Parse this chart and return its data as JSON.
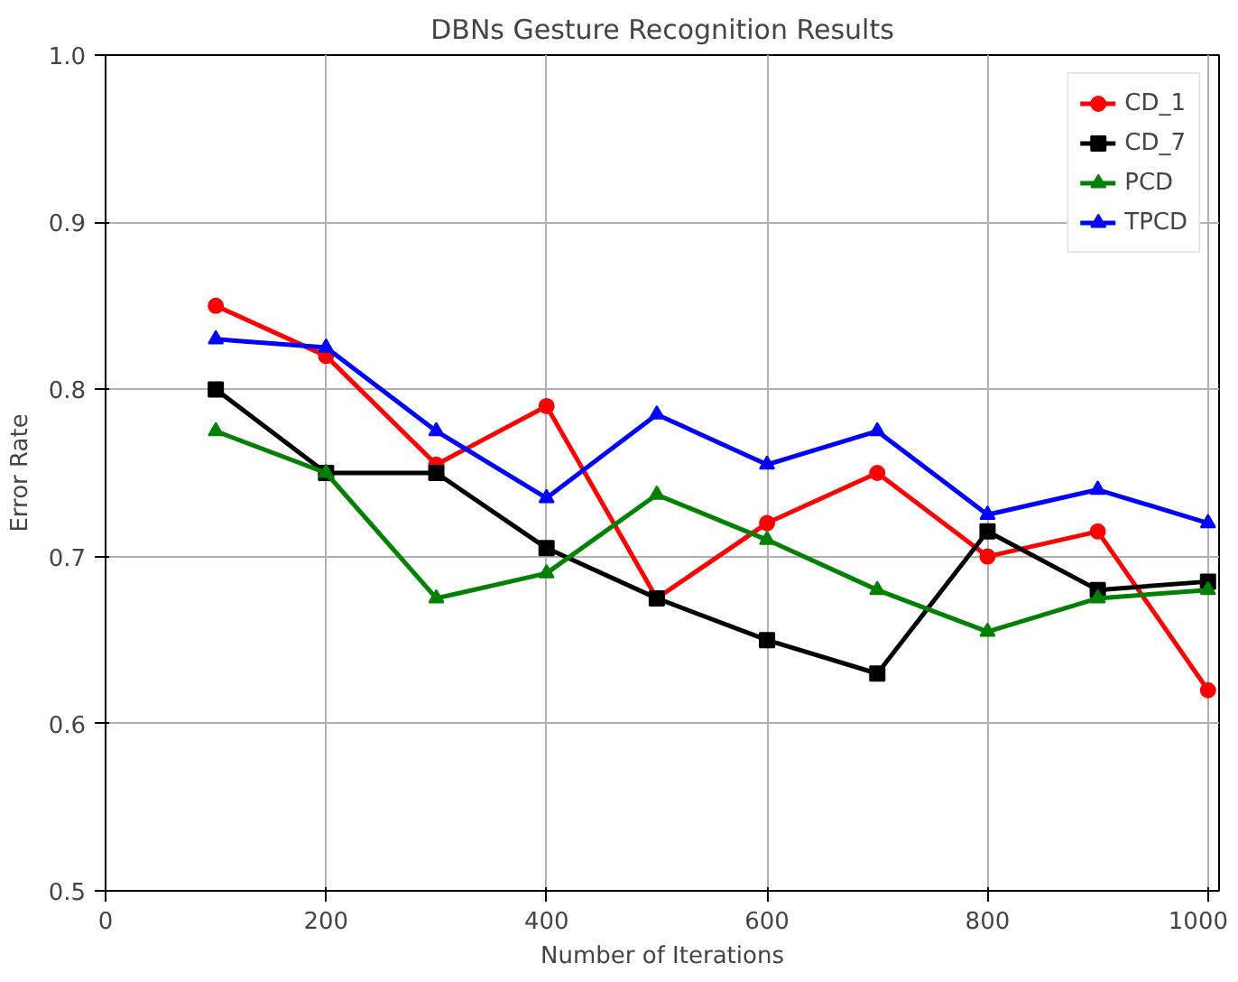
{
  "chart_data": {
    "type": "line",
    "title": "DBNs Gesture Recognition Results",
    "xlabel": "Number of Iterations",
    "ylabel": "Error Rate",
    "x": [
      100,
      200,
      300,
      400,
      500,
      600,
      700,
      800,
      900,
      1000
    ],
    "series": [
      {
        "name": "CD_1",
        "color": "#ff0000",
        "marker": "circle",
        "values": [
          0.85,
          0.82,
          0.755,
          0.79,
          0.675,
          0.72,
          0.75,
          0.7,
          0.715,
          0.62
        ]
      },
      {
        "name": "CD_7",
        "color": "#000000",
        "marker": "square",
        "values": [
          0.8,
          0.75,
          0.75,
          0.705,
          0.675,
          0.65,
          0.63,
          0.715,
          0.68,
          0.685
        ]
      },
      {
        "name": "PCD",
        "color": "#008000",
        "marker": "triangle",
        "values": [
          0.775,
          0.75,
          0.675,
          0.69,
          0.737,
          0.71,
          0.68,
          0.655,
          0.675,
          0.68
        ]
      },
      {
        "name": "TPCD",
        "color": "#0000ff",
        "marker": "triangle",
        "values": [
          0.83,
          0.825,
          0.775,
          0.735,
          0.785,
          0.755,
          0.775,
          0.725,
          0.74,
          0.72
        ]
      }
    ],
    "xlim": [
      0,
      1010
    ],
    "ylim": [
      0.5,
      1.0
    ],
    "xticks": [
      0,
      200,
      400,
      600,
      800,
      1000
    ],
    "yticks": [
      {
        "value": 0.5,
        "label": "0.5"
      },
      {
        "value": 0.6,
        "label": "0.6"
      },
      {
        "value": 0.7,
        "label": "0.7"
      },
      {
        "value": 0.8,
        "label": "0.8"
      },
      {
        "value": 0.9,
        "label": "0.9"
      },
      {
        "value": 1.0,
        "label": "1.0"
      }
    ],
    "grid": true,
    "legend": "top right",
    "line_style": "solid"
  }
}
